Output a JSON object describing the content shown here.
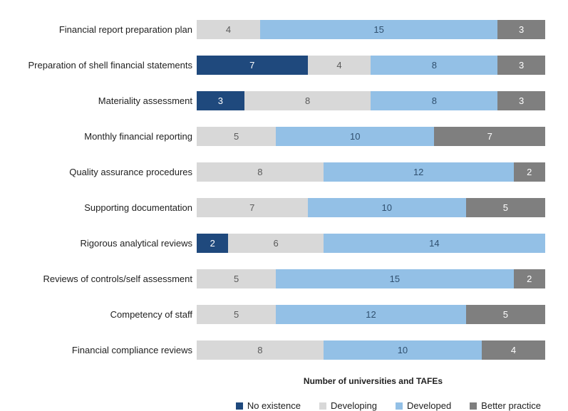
{
  "chart": {
    "type": "stacked-bar-horizontal",
    "x_axis_title": "Number of universities and TAFEs",
    "max_value": 22,
    "label_fontsize": 13,
    "value_fontsize": 13,
    "background_color": "#ffffff",
    "series": [
      {
        "key": "no_existence",
        "label": "No existence",
        "color": "#1f497d",
        "text_color": "#ffffff"
      },
      {
        "key": "developing",
        "label": "Developing",
        "color": "#d8d8d8",
        "text_color": "#5a5a5a"
      },
      {
        "key": "developed",
        "label": "Developed",
        "color": "#93c0e6",
        "text_color": "#30506f"
      },
      {
        "key": "better_practice",
        "label": "Better practice",
        "color": "#7f7f7f",
        "text_color": "#ffffff"
      }
    ],
    "categories": [
      {
        "label": "Financial report preparation plan",
        "values": {
          "no_existence": 0,
          "developing": 4,
          "developed": 15,
          "better_practice": 3
        }
      },
      {
        "label": "Preparation of shell financial statements",
        "values": {
          "no_existence": 7,
          "developing": 4,
          "developed": 8,
          "better_practice": 3
        }
      },
      {
        "label": "Materiality assessment",
        "values": {
          "no_existence": 3,
          "developing": 8,
          "developed": 8,
          "better_practice": 3
        }
      },
      {
        "label": "Monthly financial reporting",
        "values": {
          "no_existence": 0,
          "developing": 5,
          "developed": 10,
          "better_practice": 7
        }
      },
      {
        "label": "Quality assurance procedures",
        "values": {
          "no_existence": 0,
          "developing": 8,
          "developed": 12,
          "better_practice": 2
        }
      },
      {
        "label": "Supporting documentation",
        "values": {
          "no_existence": 0,
          "developing": 7,
          "developed": 10,
          "better_practice": 5
        }
      },
      {
        "label": "Rigorous analytical reviews",
        "values": {
          "no_existence": 2,
          "developing": 6,
          "developed": 14,
          "better_practice": 0
        }
      },
      {
        "label": "Reviews of controls/self assessment",
        "values": {
          "no_existence": 0,
          "developing": 5,
          "developed": 15,
          "better_practice": 2
        }
      },
      {
        "label": "Competency of staff",
        "values": {
          "no_existence": 0,
          "developing": 5,
          "developed": 12,
          "better_practice": 5
        }
      },
      {
        "label": "Financial compliance reviews",
        "values": {
          "no_existence": 0,
          "developing": 8,
          "developed": 10,
          "better_practice": 4
        }
      }
    ]
  }
}
